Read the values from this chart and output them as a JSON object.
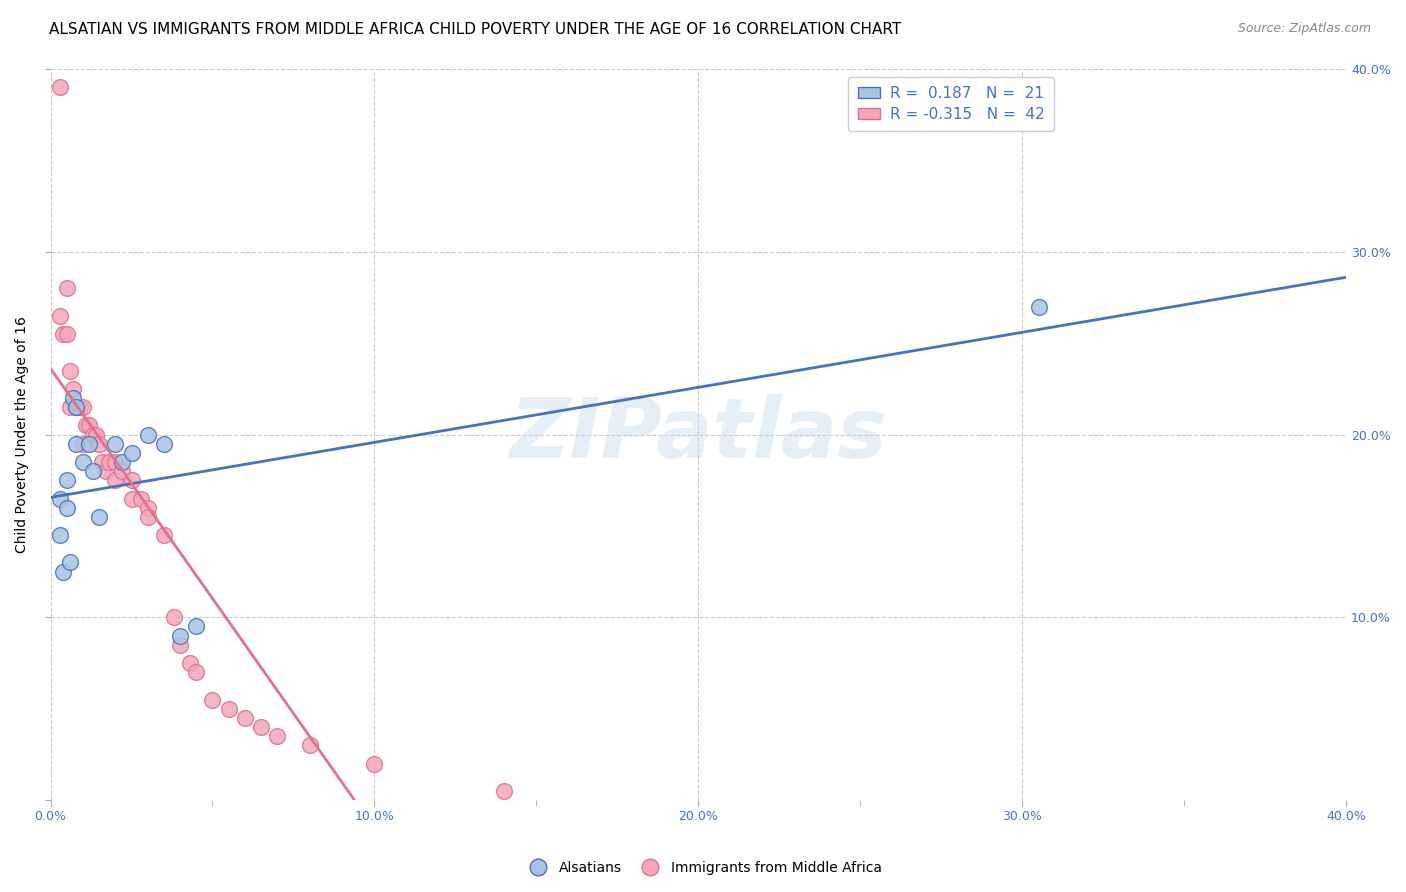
{
  "title": "ALSATIAN VS IMMIGRANTS FROM MIDDLE AFRICA CHILD POVERTY UNDER THE AGE OF 16 CORRELATION CHART",
  "source": "Source: ZipAtlas.com",
  "ylabel": "Child Poverty Under the Age of 16",
  "xlim": [
    0.0,
    0.4
  ],
  "ylim": [
    0.0,
    0.4
  ],
  "xtick_labels": [
    "0.0%",
    "",
    "10.0%",
    "",
    "20.0%",
    "",
    "30.0%",
    "",
    "40.0%"
  ],
  "xtick_vals": [
    0.0,
    0.05,
    0.1,
    0.15,
    0.2,
    0.25,
    0.3,
    0.35,
    0.4
  ],
  "ytick_vals": [
    0.0,
    0.1,
    0.2,
    0.3,
    0.4
  ],
  "alsatians_x": [
    0.003,
    0.003,
    0.004,
    0.005,
    0.005,
    0.006,
    0.007,
    0.008,
    0.008,
    0.01,
    0.012,
    0.013,
    0.015,
    0.02,
    0.022,
    0.025,
    0.03,
    0.035,
    0.04,
    0.045,
    0.305
  ],
  "alsatians_y": [
    0.165,
    0.145,
    0.125,
    0.175,
    0.16,
    0.13,
    0.22,
    0.215,
    0.195,
    0.185,
    0.195,
    0.18,
    0.155,
    0.195,
    0.185,
    0.19,
    0.2,
    0.195,
    0.09,
    0.095,
    0.27
  ],
  "immigrants_x": [
    0.003,
    0.003,
    0.004,
    0.005,
    0.005,
    0.006,
    0.006,
    0.007,
    0.008,
    0.008,
    0.009,
    0.01,
    0.01,
    0.011,
    0.012,
    0.013,
    0.014,
    0.015,
    0.016,
    0.017,
    0.018,
    0.02,
    0.02,
    0.022,
    0.025,
    0.025,
    0.028,
    0.03,
    0.03,
    0.035,
    0.038,
    0.04,
    0.043,
    0.045,
    0.05,
    0.055,
    0.06,
    0.065,
    0.07,
    0.08,
    0.1,
    0.14
  ],
  "immigrants_y": [
    0.39,
    0.265,
    0.255,
    0.28,
    0.255,
    0.235,
    0.215,
    0.225,
    0.215,
    0.215,
    0.215,
    0.215,
    0.195,
    0.205,
    0.205,
    0.2,
    0.2,
    0.195,
    0.185,
    0.18,
    0.185,
    0.185,
    0.175,
    0.18,
    0.175,
    0.165,
    0.165,
    0.16,
    0.155,
    0.145,
    0.1,
    0.085,
    0.075,
    0.07,
    0.055,
    0.05,
    0.045,
    0.04,
    0.035,
    0.03,
    0.02,
    0.005
  ],
  "alsatian_color": "#a8c4e0",
  "immigrant_color": "#f4a7b9",
  "alsatian_line_color": "#4472c4",
  "immigrant_line_color": "#e07090",
  "alsatian_line_intercept": 0.185,
  "alsatian_line_end": 0.26,
  "immigrant_line_intercept": 0.215,
  "immigrant_line_solid_end_x": 0.155,
  "immigrant_line_dash_end_x": 0.4,
  "R_alsatian": 0.187,
  "N_alsatian": 21,
  "R_immigrant": -0.315,
  "N_immigrant": 42,
  "watermark_text": "ZIPatlas",
  "grid_color": "#cccccc",
  "grid_linestyle": "--",
  "background_color": "#ffffff",
  "title_fontsize": 11,
  "label_fontsize": 10,
  "tick_fontsize": 9,
  "legend_fontsize": 11
}
